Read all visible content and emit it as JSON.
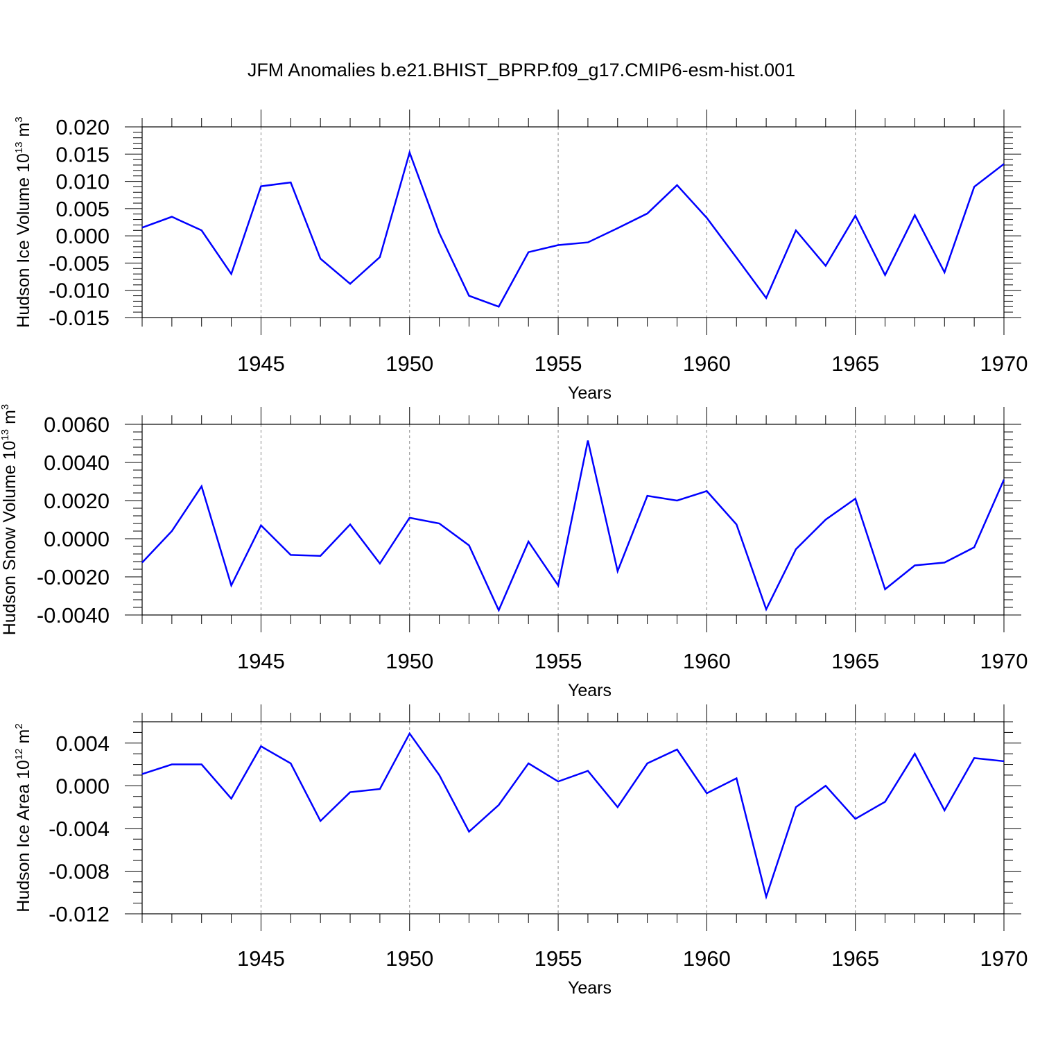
{
  "title": "JFM Anomalies b.e21.BHIST_BPRP.f09_g17.CMIP6-esm-hist.001",
  "colors": {
    "line": "#0000ff",
    "axis": "#000000",
    "grid": "#888888"
  },
  "chart_data": [
    {
      "type": "line",
      "ylabel": {
        "text": "Hudson Ice Volume 10",
        "exp": "13",
        "unit": "m",
        "unit_exp": "3"
      },
      "xlabel": "Years",
      "xlim": [
        1941,
        1970
      ],
      "ylim": [
        -0.015,
        0.02
      ],
      "x_ticks": [
        1945,
        1950,
        1955,
        1960,
        1965,
        1970
      ],
      "y_ticks": [
        -0.015,
        -0.01,
        -0.005,
        0.0,
        0.005,
        0.01,
        0.015,
        0.02
      ],
      "y_tick_labels": [
        "-0.015",
        "-0.010",
        "-0.005",
        "0.000",
        "0.005",
        "0.010",
        "0.015",
        "0.020"
      ],
      "y_minor_step": 0.001,
      "grid": "vertical dashed at major x ticks",
      "x": [
        1941,
        1942,
        1943,
        1944,
        1945,
        1946,
        1947,
        1948,
        1949,
        1950,
        1951,
        1952,
        1953,
        1954,
        1955,
        1956,
        1957,
        1958,
        1959,
        1960,
        1961,
        1962,
        1963,
        1964,
        1965,
        1966,
        1967,
        1968,
        1969,
        1970
      ],
      "y": [
        0.0015,
        0.0035,
        0.001,
        -0.007,
        0.0091,
        0.0098,
        -0.0042,
        -0.0088,
        -0.0039,
        0.0153,
        0.0005,
        -0.011,
        -0.013,
        -0.003,
        -0.0017,
        -0.0012,
        0.0014,
        0.0041,
        0.0093,
        0.0033,
        -0.004,
        -0.0114,
        0.001,
        -0.0055,
        0.0037,
        -0.0072,
        0.0038,
        -0.0067,
        0.009,
        0.0132
      ]
    },
    {
      "type": "line",
      "ylabel": {
        "text": "Hudson Snow Volume 10",
        "exp": "13",
        "unit": "m",
        "unit_exp": "3"
      },
      "xlabel": "Years",
      "xlim": [
        1941,
        1970
      ],
      "ylim": [
        -0.004,
        0.006
      ],
      "x_ticks": [
        1945,
        1950,
        1955,
        1960,
        1965,
        1970
      ],
      "y_ticks": [
        -0.004,
        -0.002,
        0.0,
        0.002,
        0.004,
        0.006
      ],
      "y_tick_labels": [
        "-0.0040",
        "-0.0020",
        "0.0000",
        "0.0020",
        "0.0040",
        "0.0060"
      ],
      "y_minor_step": 0.0004,
      "grid": "vertical dashed at major x ticks",
      "x": [
        1941,
        1942,
        1943,
        1944,
        1945,
        1946,
        1947,
        1948,
        1949,
        1950,
        1951,
        1952,
        1953,
        1954,
        1955,
        1956,
        1957,
        1958,
        1959,
        1960,
        1961,
        1962,
        1963,
        1964,
        1965,
        1966,
        1967,
        1968,
        1969,
        1970
      ],
      "y": [
        -0.00125,
        0.0004,
        0.00275,
        -0.00245,
        0.0007,
        -0.00085,
        -0.0009,
        0.00075,
        -0.0013,
        0.0011,
        0.0008,
        -0.00035,
        -0.00375,
        -0.00015,
        -0.00245,
        0.00515,
        -0.0017,
        0.00225,
        0.002,
        0.0025,
        0.00075,
        -0.0037,
        -0.00055,
        0.001,
        0.0021,
        -0.00265,
        -0.0014,
        -0.00125,
        -0.00045,
        0.0031
      ]
    },
    {
      "type": "line",
      "ylabel": {
        "text": "Hudson Ice Area 10",
        "exp": "12",
        "unit": "m",
        "unit_exp": "2"
      },
      "xlabel": "Years",
      "xlim": [
        1941,
        1970
      ],
      "ylim": [
        -0.012,
        0.006
      ],
      "x_ticks": [
        1945,
        1950,
        1955,
        1960,
        1965,
        1970
      ],
      "y_ticks": [
        -0.012,
        -0.008,
        -0.004,
        0.0,
        0.004
      ],
      "y_tick_labels": [
        "-0.012",
        "-0.008",
        "-0.004",
        "0.000",
        "0.004"
      ],
      "y_minor_step": 0.001,
      "grid": "vertical dashed at major x ticks",
      "x": [
        1941,
        1942,
        1943,
        1944,
        1945,
        1946,
        1947,
        1948,
        1949,
        1950,
        1951,
        1952,
        1953,
        1954,
        1955,
        1956,
        1957,
        1958,
        1959,
        1960,
        1961,
        1962,
        1963,
        1964,
        1965,
        1966,
        1967,
        1968,
        1969,
        1970
      ],
      "y": [
        0.0011,
        0.002,
        0.002,
        -0.0012,
        0.0037,
        0.0021,
        -0.0033,
        -0.0006,
        -0.0003,
        0.0049,
        0.001,
        -0.0043,
        -0.0018,
        0.0021,
        0.0004,
        0.0014,
        -0.002,
        0.0021,
        0.0034,
        -0.0007,
        0.0007,
        -0.0104,
        -0.002,
        0.0,
        -0.0031,
        -0.0015,
        0.003,
        -0.0023,
        0.0026,
        0.0023
      ]
    }
  ]
}
